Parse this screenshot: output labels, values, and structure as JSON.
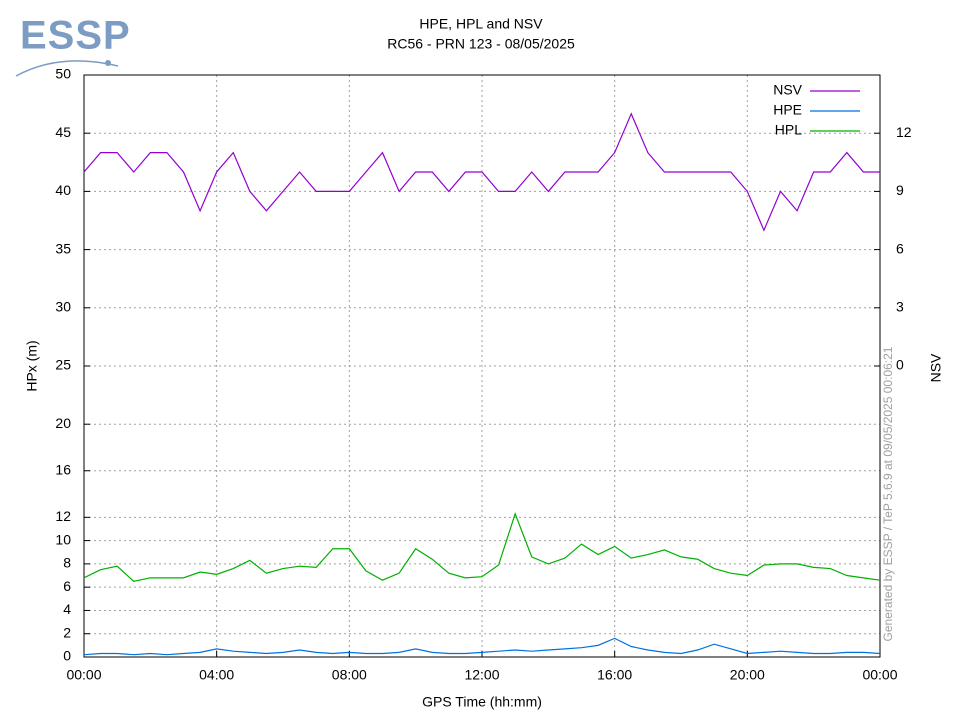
{
  "logo": "ESSP",
  "chart_data": {
    "type": "line",
    "title": "HPE, HPL and NSV",
    "subtitle": "RC56 - PRN 123 - 08/05/2025",
    "xlabel": "GPS Time (hh:mm)",
    "ylabel": "HPx (m)",
    "y2label": "NSV",
    "annotation": "Generated by ESSP / TeP 5.6.9 at 09/05/2025 00:06:21",
    "xlim": [
      0,
      24
    ],
    "xticks": [
      {
        "value": 0,
        "label": "00:00"
      },
      {
        "value": 4,
        "label": "04:00"
      },
      {
        "value": 8,
        "label": "08:00"
      },
      {
        "value": 12,
        "label": "12:00"
      },
      {
        "value": 16,
        "label": "16:00"
      },
      {
        "value": 20,
        "label": "20:00"
      },
      {
        "value": 24,
        "label": "00:00"
      }
    ],
    "ylim": [
      0,
      50
    ],
    "yticks": [
      0,
      2,
      4,
      6,
      8,
      10,
      12,
      16,
      20,
      25,
      30,
      35,
      40,
      45,
      50
    ],
    "y2lim": [
      -15,
      15
    ],
    "y2ticks": [
      0,
      3,
      6,
      9,
      12
    ],
    "grid": true,
    "legend": "top-right",
    "x": [
      0,
      0.5,
      1,
      1.5,
      2,
      2.5,
      3,
      3.5,
      4,
      4.5,
      5,
      5.5,
      6,
      6.5,
      7,
      7.5,
      8,
      8.5,
      9,
      9.5,
      10,
      10.5,
      11,
      11.5,
      12,
      12.5,
      13,
      13.5,
      14,
      14.5,
      15,
      15.5,
      16,
      16.5,
      17,
      17.5,
      18,
      18.5,
      19,
      19.5,
      20,
      20.5,
      21,
      21.5,
      22,
      22.5,
      23,
      23.5,
      24
    ],
    "series": [
      {
        "name": "NSV",
        "color": "#9400d3",
        "axis": "y2",
        "values": [
          10,
          11,
          11,
          10,
          11,
          11,
          10,
          8,
          10,
          11,
          9,
          8,
          9,
          10,
          9,
          9,
          9,
          10,
          11,
          9,
          10,
          10,
          9,
          10,
          10,
          9,
          9,
          10,
          9,
          10,
          10,
          10,
          11,
          13,
          11,
          10,
          10,
          10,
          10,
          10,
          9,
          7,
          9,
          8,
          10,
          10,
          11,
          10,
          10
        ]
      },
      {
        "name": "HPE",
        "color": "#0072e0",
        "values": [
          0.2,
          0.3,
          0.3,
          0.2,
          0.3,
          0.2,
          0.3,
          0.4,
          0.7,
          0.5,
          0.4,
          0.3,
          0.4,
          0.6,
          0.4,
          0.3,
          0.4,
          0.3,
          0.3,
          0.4,
          0.7,
          0.4,
          0.3,
          0.3,
          0.4,
          0.5,
          0.6,
          0.5,
          0.6,
          0.7,
          0.8,
          1.0,
          1.6,
          0.9,
          0.6,
          0.4,
          0.3,
          0.6,
          1.1,
          0.7,
          0.3,
          0.4,
          0.5,
          0.4,
          0.3,
          0.3,
          0.4,
          0.4,
          0.3
        ]
      },
      {
        "name": "HPL",
        "color": "#00b000",
        "values": [
          6.8,
          7.5,
          7.8,
          6.5,
          6.8,
          6.8,
          6.8,
          7.3,
          7.1,
          7.6,
          8.3,
          7.2,
          7.6,
          7.8,
          7.7,
          9.3,
          9.3,
          7.4,
          6.6,
          7.2,
          9.3,
          8.4,
          7.2,
          6.8,
          6.9,
          7.9,
          12.3,
          8.6,
          8.0,
          8.5,
          9.7,
          8.8,
          9.5,
          8.5,
          8.8,
          9.2,
          8.6,
          8.4,
          7.6,
          7.2,
          7.0,
          7.9,
          8.0,
          8.0,
          7.7,
          7.6,
          7.0,
          6.8,
          6.6
        ]
      }
    ]
  }
}
